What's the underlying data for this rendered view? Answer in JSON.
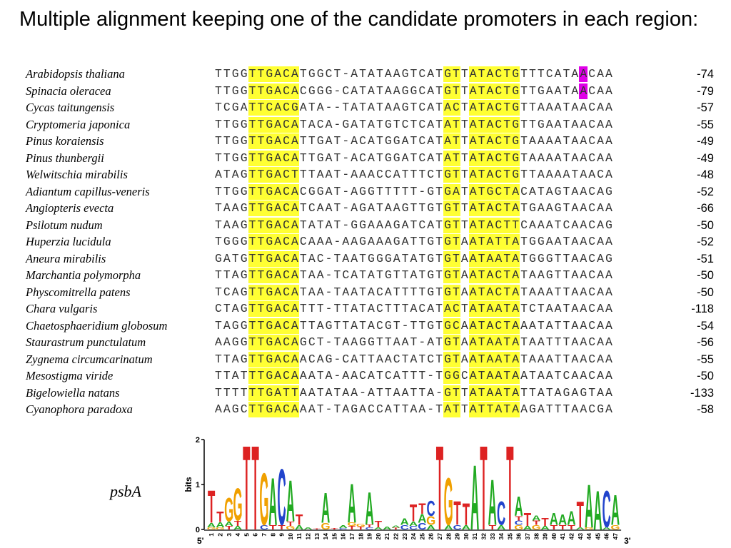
{
  "slide": {
    "title": "Multiple alignment keeping one of the candidate promoters in each region:"
  },
  "highlight_colors": {
    "conserved": "#ffff33",
    "tss": "#e000e8"
  },
  "alignment": [
    {
      "species": "Arabidopsis thaliana",
      "sequence": "TTGGTTGACATGGCT-ATATAAGTCATGTTATACTGTTTCATAACAA",
      "position": "-74"
    },
    {
      "species": "Spinacia oleracea",
      "sequence": "TTGGTTGACACGGG-CATATAAGGCATGTTATACTGTTGAATAACAA",
      "position": "-79"
    },
    {
      "species": "Cycas taitungensis",
      "sequence": "TCGATTCACGATA--TATATAAGTCATACTATACTGTTAAATAACAA",
      "position": "-57"
    },
    {
      "species": "Cryptomeria japonica",
      "sequence": "TTGGTTGACATACA-GATATGTCTCATATTATACTGTTGAATAACAA",
      "position": "-55"
    },
    {
      "species": "Pinus koraiensis",
      "sequence": "TTGGTTGACATTGAT-ACATGGATCATATTATACTGTAAAATAACAA",
      "position": "-49"
    },
    {
      "species": "Pinus thunbergii",
      "sequence": "TTGGTTGACATTGAT-ACATGGATCATATTATACTGTAAAATAACAA",
      "position": "-49"
    },
    {
      "species": "Welwitschia mirabilis",
      "sequence": "ATAGTTGACTTTAAT-AAACCATTTCTGTTATACTGTTAAAATAACA",
      "position": "-48"
    },
    {
      "species": "Adiantum capillus-veneris",
      "sequence": "TTGGTTGACACGGAT-AGGTTTTT-GTGATATGCTACATAGTAACAG",
      "position": "-52"
    },
    {
      "species": "Angiopteris evecta",
      "sequence": "TAAGTTGACATCAAT-AGATAAGTTGTGTTATACTATGAAGTAACAA",
      "position": "-66"
    },
    {
      "species": "Psilotum nudum",
      "sequence": "TAAGTTGACATATAT-GGAAAGATCATGTTATACTTCAAATCAACAG",
      "position": "-50"
    },
    {
      "species": "Huperzia lucidula",
      "sequence": "TGGGTTGACACAAA-AAGAAAGATTGTGTAATATTATGGAATAACAA",
      "position": "-52"
    },
    {
      "species": "Aneura mirabilis",
      "sequence": "GATGTTGACATAC-TAATGGGATATGTGTAATAATATGGGTTAACAG",
      "position": "-51"
    },
    {
      "species": "Marchantia polymorpha",
      "sequence": "TTAGTTGACATAA-TCATATGTTATGTGTAATACTATAAGTTAACAA",
      "position": "-50"
    },
    {
      "species": "Physcomitrella patens",
      "sequence": "TCAGTTGACATAA-TAATACATTTTGTGTAATACTATAAATTAACAA",
      "position": "-50"
    },
    {
      "species": "Chara vulgaris",
      "sequence": "CTAGTTGACATTT-TTATACTTTACATACTATAATATCTAATAACAA",
      "position": "-118"
    },
    {
      "species": "Chaetosphaeridium globosum",
      "sequence": "TAGGTTGACATTAGTTATACGT-TTGTGCAATACTAAATATTAACAA",
      "position": "-54"
    },
    {
      "species": "Staurastrum punctulatum",
      "sequence": "AAGGTTGACAGCT-TAAGGTTAAT-ATGTAATAATATAATTTAACAA",
      "position": "-56"
    },
    {
      "species": "Zygnema circumcarinatum",
      "sequence": "TTAGTTGACAACAG-CATTAACTATCTGTAATAATATAAATTAACAA",
      "position": "-55"
    },
    {
      "species": "Mesostigma viride",
      "sequence": "TTATTTGACAAATA-AACATCATTT-TGGCATAATAATAATCAACAA",
      "position": "-50"
    },
    {
      "species": "Bigelowiella natans",
      "sequence": "TTTTTTGATTAATATAA-ATTAATTA-GTTATAATATTATAGAGTAA",
      "position": "-133"
    },
    {
      "species": "Cyanophora paradoxa",
      "sequence": "AAGCTTGACAAAT-TAGACCATTAA-TATTATTATAAGATTTAACGA",
      "position": "-58"
    }
  ],
  "logo": {
    "gene": "psbA",
    "ylabel": "bits",
    "yticks": [
      "0",
      "1",
      "2"
    ],
    "five_prime": "5'",
    "three_prime": "3'",
    "positions": [
      "1",
      "2",
      "3",
      "4",
      "5",
      "6",
      "7",
      "8",
      "9",
      "10",
      "11",
      "12",
      "13",
      "14",
      "15",
      "16",
      "17",
      "18",
      "19",
      "20",
      "21",
      "22",
      "23",
      "24",
      "25",
      "26",
      "27",
      "28",
      "29",
      "30",
      "31",
      "32",
      "33",
      "34",
      "35",
      "36",
      "37",
      "38",
      "39",
      "40",
      "41",
      "42",
      "43",
      "44",
      "45",
      "46",
      "47"
    ]
  },
  "chart_data": {
    "type": "sequence-logo",
    "title": "",
    "ylabel": "bits",
    "ylim": [
      0,
      2
    ],
    "letter_colors": {
      "A": "#22aa22",
      "C": "#2244cc",
      "G": "#f0a000",
      "T": "#dd2222"
    },
    "columns": [
      [
        [
          "T",
          0.75
        ],
        [
          "A",
          0.1
        ],
        [
          "G",
          0.05
        ]
      ],
      [
        [
          "T",
          0.25
        ],
        [
          "A",
          0.12
        ],
        [
          "G",
          0.05
        ]
      ],
      [
        [
          "G",
          0.55
        ],
        [
          "A",
          0.1
        ],
        [
          "T",
          0.08
        ]
      ],
      [
        [
          "G",
          0.75
        ],
        [
          "T",
          0.12
        ],
        [
          "A",
          0.08
        ]
      ],
      [
        [
          "T",
          1.95
        ]
      ],
      [
        [
          "T",
          1.95
        ]
      ],
      [
        [
          "G",
          1.2
        ],
        [
          "C",
          0.1
        ]
      ],
      [
        [
          "A",
          1.1
        ],
        [
          "T",
          0.1
        ]
      ],
      [
        [
          "C",
          1.3
        ],
        [
          "T",
          0.1
        ]
      ],
      [
        [
          "A",
          0.95
        ],
        [
          "T",
          0.1
        ],
        [
          "G",
          0.08
        ]
      ],
      [
        [
          "T",
          0.25
        ],
        [
          "A",
          0.1
        ]
      ],
      [
        [
          "A",
          0.05
        ]
      ],
      [
        [
          "T",
          0.02
        ]
      ],
      [
        [
          "A",
          0.7
        ],
        [
          "G",
          0.15
        ]
      ],
      [
        [
          "T",
          0.03
        ]
      ],
      [
        [
          "A",
          0.06
        ],
        [
          "C",
          0.03
        ]
      ],
      [
        [
          "A",
          0.9
        ],
        [
          "T",
          0.08
        ],
        [
          "G",
          0.08
        ]
      ],
      [
        [
          "T",
          0.06
        ],
        [
          "G",
          0.06
        ]
      ],
      [
        [
          "A",
          0.75
        ],
        [
          "T",
          0.06
        ],
        [
          "C",
          0.05
        ]
      ],
      [
        [
          "T",
          0.15
        ],
        [
          "A",
          0.05
        ]
      ],
      [
        [
          "A",
          0.06
        ]
      ],
      [
        [
          "A",
          0.05
        ],
        [
          "T",
          0.04
        ]
      ],
      [
        [
          "A",
          0.15
        ],
        [
          "C",
          0.1
        ]
      ],
      [
        [
          "T",
          0.4
        ],
        [
          "A",
          0.1
        ],
        [
          "C",
          0.08
        ]
      ],
      [
        [
          "T",
          0.25
        ],
        [
          "A",
          0.2
        ],
        [
          "C",
          0.15
        ]
      ],
      [
        [
          "C",
          0.35
        ],
        [
          "G",
          0.2
        ],
        [
          "A",
          0.1
        ]
      ],
      [
        [
          "T",
          1.95
        ]
      ],
      [
        [
          "G",
          1.1
        ],
        [
          "A",
          0.1
        ]
      ],
      [
        [
          "T",
          0.55
        ],
        [
          "C",
          0.1
        ]
      ],
      [
        [
          "T",
          0.5
        ],
        [
          "A",
          0.1
        ]
      ],
      [
        [
          "A",
          1.5
        ]
      ],
      [
        [
          "T",
          1.95
        ]
      ],
      [
        [
          "A",
          1.05
        ],
        [
          "T",
          0.1
        ]
      ],
      [
        [
          "C",
          0.55
        ],
        [
          "A",
          0.1
        ]
      ],
      [
        [
          "T",
          1.95
        ]
      ],
      [
        [
          "A",
          0.45
        ],
        [
          "G",
          0.1
        ],
        [
          "C",
          0.1
        ],
        [
          "T",
          0.1
        ]
      ],
      [
        [
          "T",
          0.3
        ],
        [
          "A",
          0.08
        ]
      ],
      [
        [
          "A",
          0.12
        ],
        [
          "G",
          0.1
        ],
        [
          "T",
          0.1
        ]
      ],
      [
        [
          "T",
          0.18
        ],
        [
          "A",
          0.08
        ]
      ],
      [
        [
          "A",
          0.28
        ],
        [
          "T",
          0.1
        ]
      ],
      [
        [
          "A",
          0.25
        ],
        [
          "T",
          0.1
        ]
      ],
      [
        [
          "A",
          0.32
        ],
        [
          "T",
          0.1
        ]
      ],
      [
        [
          "T",
          0.6
        ],
        [
          "A",
          0.05
        ]
      ],
      [
        [
          "A",
          1.0
        ],
        [
          "G",
          0.05
        ]
      ],
      [
        [
          "A",
          0.9
        ]
      ],
      [
        [
          "C",
          0.85
        ],
        [
          "A",
          0.05
        ]
      ],
      [
        [
          "A",
          0.7
        ],
        [
          "G",
          0.1
        ]
      ]
    ]
  }
}
